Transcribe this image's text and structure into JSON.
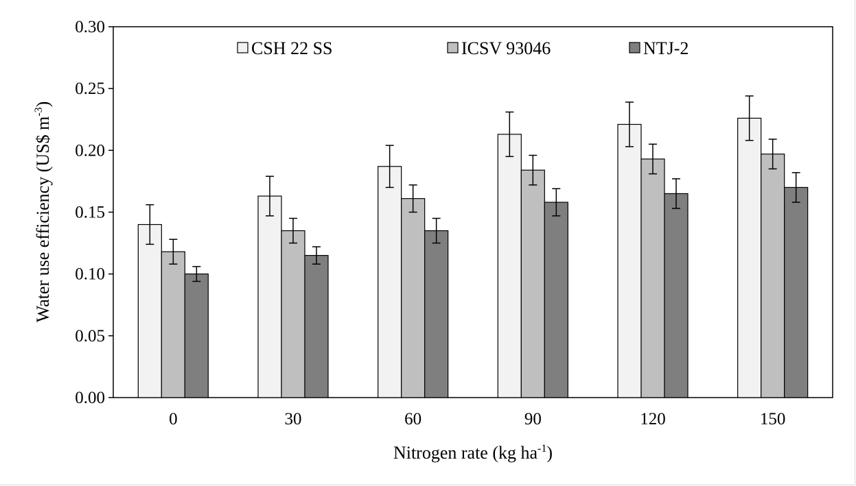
{
  "chart_data": {
    "type": "bar",
    "xlabel": "Nitrogen rate (kg ha",
    "xlabel_sup": "-1",
    "xlabel_end": ")",
    "ylabel": "Water use efficiency (US$ m",
    "ylabel_sup": "-3",
    "ylabel_end": ")",
    "categories": [
      "0",
      "30",
      "60",
      "90",
      "120",
      "150"
    ],
    "ylim": [
      0,
      0.3
    ],
    "yticks": [
      "0.00",
      "0.05",
      "0.10",
      "0.15",
      "0.20",
      "0.25",
      "0.30"
    ],
    "grid": false,
    "legend_placement": "top",
    "series": [
      {
        "name": "CSH 22 SS",
        "color": "#f2f2f2",
        "values": [
          0.14,
          0.163,
          0.187,
          0.213,
          0.221,
          0.226
        ],
        "errors": [
          0.016,
          0.016,
          0.017,
          0.018,
          0.018,
          0.018
        ]
      },
      {
        "name": "ICSV 93046",
        "color": "#bfbfbf",
        "values": [
          0.118,
          0.135,
          0.161,
          0.184,
          0.193,
          0.197
        ],
        "errors": [
          0.01,
          0.01,
          0.011,
          0.012,
          0.012,
          0.012
        ]
      },
      {
        "name": "NTJ-2",
        "color": "#7f7f7f",
        "values": [
          0.1,
          0.115,
          0.135,
          0.158,
          0.165,
          0.17
        ],
        "errors": [
          0.006,
          0.007,
          0.01,
          0.011,
          0.012,
          0.012
        ]
      }
    ]
  }
}
